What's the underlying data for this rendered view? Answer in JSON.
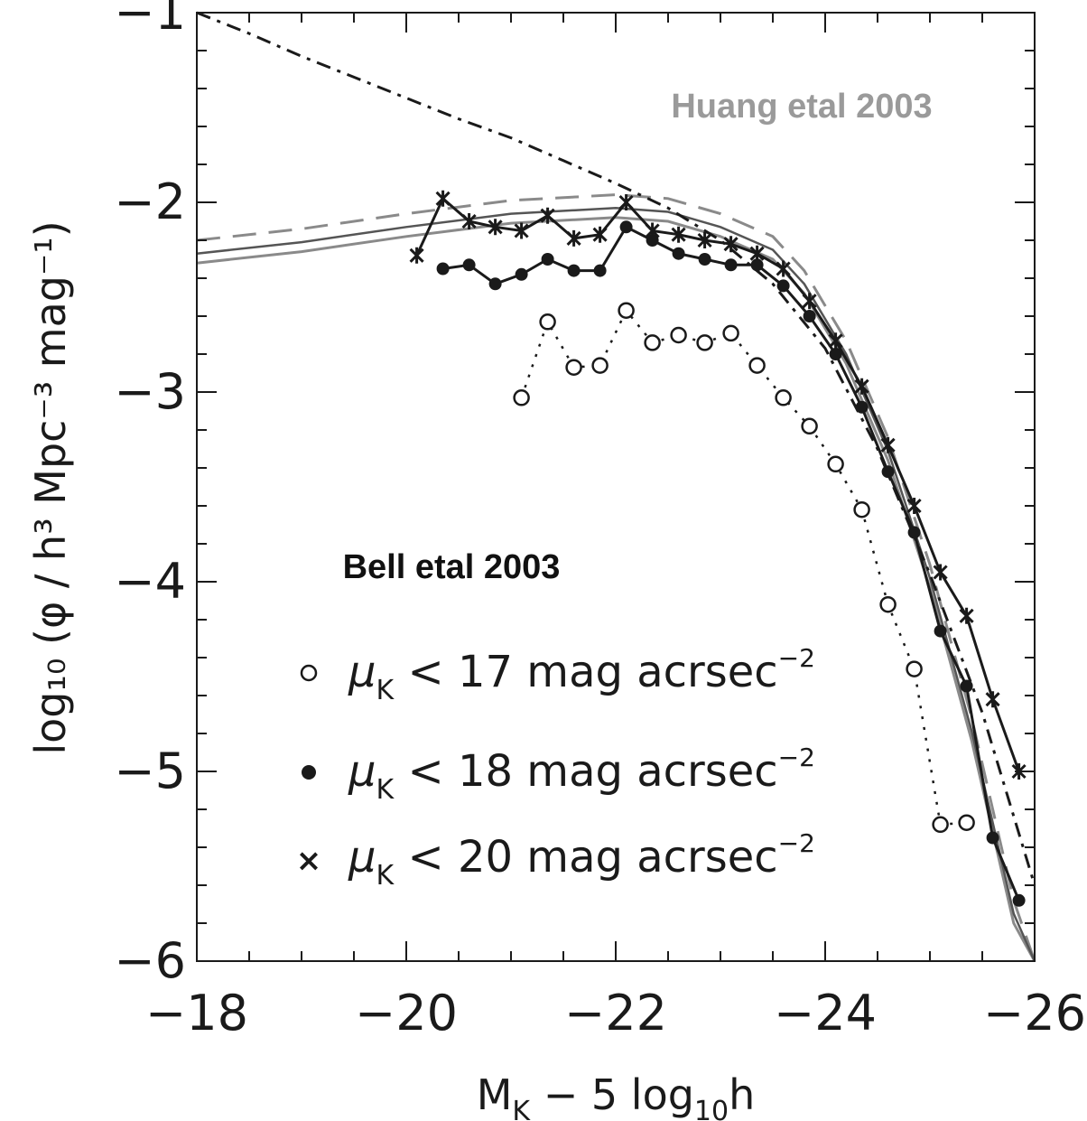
{
  "chart_data": {
    "type": "scatter",
    "xlabel": "M",
    "xlabel_sub": "K",
    "xlabel_rest": " − 5 log",
    "xlabel_sub2": "10",
    "xlabel_end": "h",
    "ylabel": "log₁₀ (φ / h³ Mpc⁻³ mag⁻¹)",
    "xlim": [
      -18,
      -26
    ],
    "ylim": [
      -6,
      -1
    ],
    "xticks": [
      -18,
      -20,
      -22,
      -24,
      -26
    ],
    "yticks": [
      -1,
      -2,
      -3,
      -4,
      -5,
      -6
    ],
    "xtick_labels": [
      "−18",
      "−20",
      "−22",
      "−24",
      "−26"
    ],
    "ytick_labels": [
      "−1",
      "−2",
      "−3",
      "−4",
      "−5",
      "−6"
    ],
    "annotations": {
      "huang": "Huang etal 2003",
      "bell": "Bell etal 2003"
    },
    "legend": [
      {
        "marker": "open-circle",
        "symbol": "μ",
        "sub": "K",
        "text": " < 17 mag acrsec",
        "sup": "−2"
      },
      {
        "marker": "filled-circle",
        "symbol": "μ",
        "sub": "K",
        "text": " < 18 mag acrsec",
        "sup": "−2"
      },
      {
        "marker": "star",
        "symbol": "μ",
        "sub": "K",
        "text": " < 20 mag acrsec",
        "sup": "−2"
      }
    ],
    "series": [
      {
        "marker": "open-circle",
        "x": [
          -21.1,
          -21.35,
          -21.6,
          -21.85,
          -22.1,
          -22.35,
          -22.6,
          -22.85,
          -23.1,
          -23.35,
          -23.6,
          -23.85,
          -24.1,
          -24.35,
          -24.6,
          -24.85,
          -25.1,
          -25.35
        ],
        "y": [
          -3.03,
          -2.63,
          -2.87,
          -2.86,
          -2.57,
          -2.74,
          -2.7,
          -2.74,
          -2.69,
          -2.86,
          -3.03,
          -3.18,
          -3.38,
          -3.62,
          -4.12,
          -4.46,
          -5.28,
          -5.27
        ]
      },
      {
        "marker": "filled-circle",
        "x": [
          -20.35,
          -20.6,
          -20.85,
          -21.1,
          -21.35,
          -21.6,
          -21.85,
          -22.1,
          -22.35,
          -22.6,
          -22.85,
          -23.1,
          -23.35,
          -23.6,
          -23.85,
          -24.1,
          -24.35,
          -24.6,
          -24.85,
          -25.1,
          -25.35,
          -25.6,
          -25.85
        ],
        "y": [
          -2.35,
          -2.33,
          -2.43,
          -2.38,
          -2.3,
          -2.36,
          -2.36,
          -2.13,
          -2.2,
          -2.27,
          -2.3,
          -2.33,
          -2.33,
          -2.44,
          -2.6,
          -2.8,
          -3.08,
          -3.42,
          -3.74,
          -4.26,
          -4.55,
          -5.35,
          -5.68
        ]
      },
      {
        "marker": "star",
        "x": [
          -20.1,
          -20.35,
          -20.6,
          -20.85,
          -21.1,
          -21.35,
          -21.6,
          -21.85,
          -22.1,
          -22.35,
          -22.6,
          -22.85,
          -23.1,
          -23.35,
          -23.6,
          -23.85,
          -24.1,
          -24.35,
          -24.6,
          -24.85,
          -25.1,
          -25.35,
          -25.6,
          -25.85
        ],
        "y": [
          -2.28,
          -1.98,
          -2.1,
          -2.13,
          -2.15,
          -2.07,
          -2.19,
          -2.17,
          -2.0,
          -2.15,
          -2.17,
          -2.2,
          -2.22,
          -2.27,
          -2.35,
          -2.52,
          -2.73,
          -2.97,
          -3.28,
          -3.6,
          -3.95,
          -4.18,
          -4.62,
          -5.0
        ]
      }
    ],
    "schechter_curve": {
      "style": "dash-dot",
      "x": [
        -18.0,
        -18.5,
        -19.0,
        -19.5,
        -20.0,
        -20.5,
        -21.0,
        -21.5,
        -22.0,
        -22.5,
        -23.0,
        -23.5,
        -24.0,
        -24.5,
        -25.0,
        -25.5,
        -26.0
      ],
      "y": [
        -0.98,
        -1.11,
        -1.23,
        -1.34,
        -1.45,
        -1.56,
        -1.66,
        -1.78,
        -1.9,
        -2.03,
        -2.2,
        -2.43,
        -2.77,
        -3.3,
        -3.96,
        -4.69,
        -5.6
      ]
    },
    "huang_model": {
      "x": [
        -18.0,
        -19.0,
        -20.0,
        -21.0,
        -22.0,
        -22.5,
        -23.0,
        -23.5,
        -23.8,
        -24.2,
        -24.6,
        -25.0,
        -25.4,
        -25.8,
        -26.0
      ],
      "y": [
        -2.32,
        -2.26,
        -2.18,
        -2.11,
        -2.08,
        -2.1,
        -2.18,
        -2.3,
        -2.48,
        -2.85,
        -3.36,
        -4.03,
        -4.84,
        -5.8,
        -6.3
      ]
    },
    "colors": {
      "data": "#1a1a1a",
      "model": "#8a8a8a",
      "huang_text": "#9a9a9a"
    }
  }
}
